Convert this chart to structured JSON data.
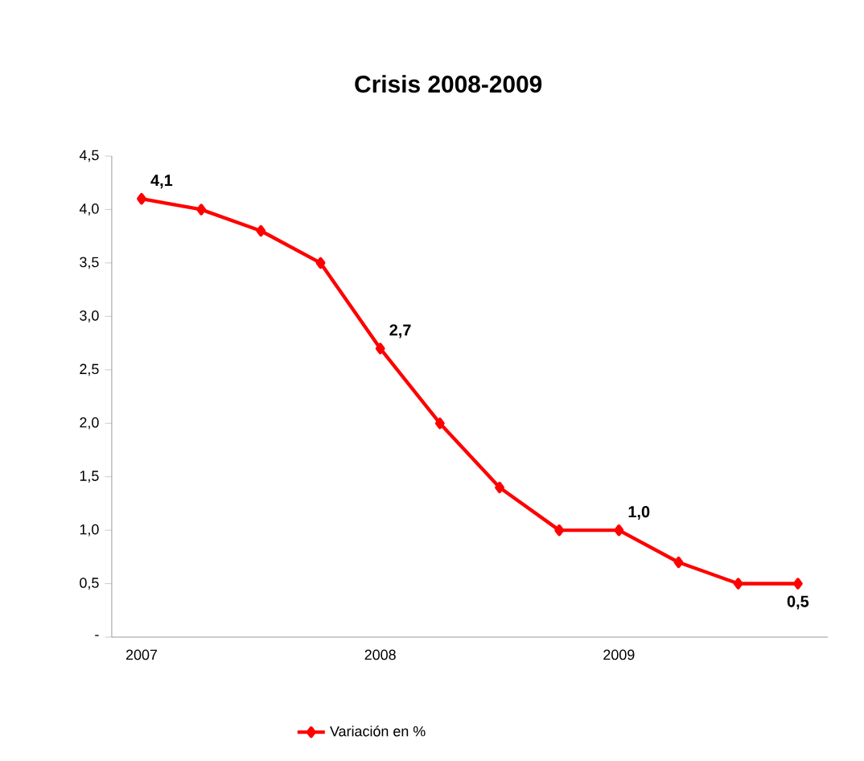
{
  "chart_data": {
    "type": "line",
    "title": "Crisis 2008-2009",
    "categories": [
      "2007",
      null,
      null,
      null,
      "2008",
      null,
      null,
      null,
      "2009",
      null,
      null,
      null
    ],
    "series": [
      {
        "name": "Variación en %",
        "color": "#ff0000",
        "values": [
          4.1,
          4.0,
          3.8,
          3.5,
          2.7,
          2.0,
          1.4,
          1.0,
          1.0,
          0.7,
          0.5,
          0.5
        ],
        "value_labels": [
          "4,1",
          null,
          null,
          null,
          "2,7",
          null,
          null,
          null,
          "1,0",
          null,
          null,
          "0,5"
        ]
      }
    ],
    "ylim": [
      0,
      4.5
    ],
    "yticks": [
      {
        "value": 0,
        "label": "-"
      },
      {
        "value": 0.5,
        "label": "0,5"
      },
      {
        "value": 1,
        "label": "1,0"
      },
      {
        "value": 1.5,
        "label": "1,5"
      },
      {
        "value": 2,
        "label": "2,0"
      },
      {
        "value": 2.5,
        "label": "2,5"
      },
      {
        "value": 3,
        "label": "3,0"
      },
      {
        "value": 3.5,
        "label": "3,5"
      },
      {
        "value": 4,
        "label": "4,0"
      },
      {
        "value": 4.5,
        "label": "4,5"
      }
    ],
    "legend": "bottom",
    "marker": "diamond",
    "line_style": "solid"
  }
}
